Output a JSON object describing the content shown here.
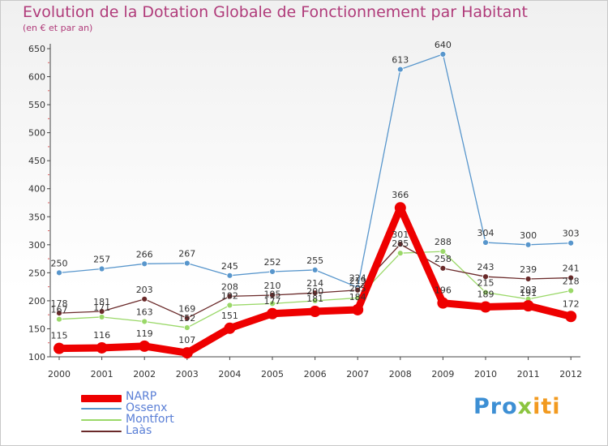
{
  "title": "Evolution de la Dotation Globale de Fonctionnement par Habitant",
  "subtitle": "(en € et par an)",
  "logo": {
    "text": "Proxiti",
    "part1": "Pro",
    "part2": "x",
    "part3": "iti"
  },
  "chart_data": {
    "type": "line",
    "title": "Evolution de la Dotation Globale de Fonctionnement par Habitant",
    "subtitle": "(en € et par an)",
    "xlabel": "",
    "ylabel": "",
    "categories": [
      "2000",
      "2001",
      "2002",
      "2003",
      "2004",
      "2005",
      "2006",
      "2007",
      "2008",
      "2009",
      "2010",
      "2011",
      "2012"
    ],
    "ylim": [
      100,
      650
    ],
    "yticks": [
      100,
      150,
      200,
      250,
      300,
      350,
      400,
      450,
      500,
      550,
      600,
      650
    ],
    "grid": false,
    "legend_position": "bottom-left",
    "series": [
      {
        "name": "NARP",
        "color": "#ee0000",
        "values": [
          115,
          116,
          119,
          107,
          151,
          177,
          181,
          184,
          366,
          196,
          189,
          191,
          172
        ],
        "labels": [
          "115",
          "116",
          "119",
          "107",
          "151",
          "177",
          "181",
          "184",
          "366",
          "196",
          "189",
          "191",
          "172"
        ]
      },
      {
        "name": "Ossenx",
        "color": "#5896cc",
        "values": [
          250,
          257,
          266,
          267,
          245,
          252,
          255,
          224,
          613,
          640,
          304,
          300,
          303
        ],
        "labels": [
          "250",
          "257",
          "266",
          "267",
          "245",
          "252",
          "255",
          "224",
          "613",
          "640",
          "304",
          "300",
          "303"
        ]
      },
      {
        "name": "Montfort",
        "color": "#9ad868",
        "values": [
          167,
          171,
          163,
          152,
          192,
          195,
          200,
          205,
          285,
          288,
          215,
          203,
          218
        ],
        "labels": [
          "167",
          "171",
          "163",
          "152",
          "192",
          "195",
          "200",
          "205",
          "285",
          "288",
          "215",
          "203",
          "218"
        ]
      },
      {
        "name": "Laàs",
        "color": "#6a2a2a",
        "values": [
          178,
          181,
          203,
          169,
          208,
          210,
          214,
          219,
          301,
          258,
          243,
          239,
          241
        ],
        "labels": [
          "178",
          "181",
          "203",
          "169",
          "208",
          "210",
          "214",
          "219",
          "301",
          "258",
          "243",
          "239",
          "241"
        ]
      }
    ]
  }
}
